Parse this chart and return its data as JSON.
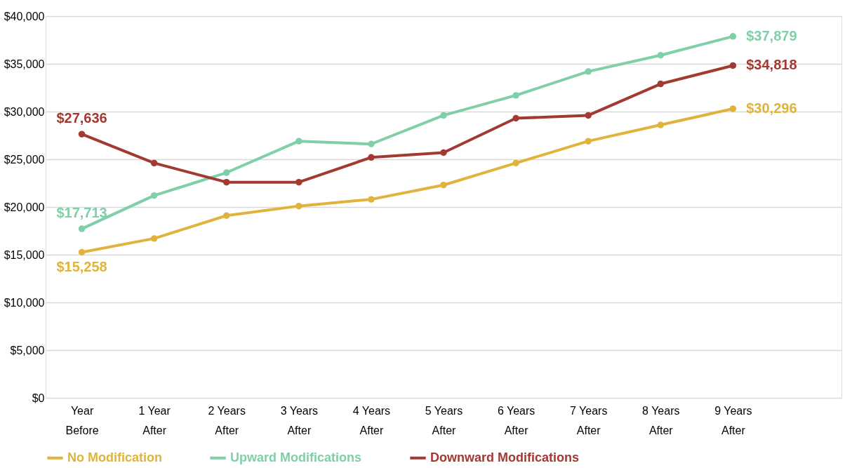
{
  "chart_data": {
    "type": "line",
    "categories": [
      "Year Before",
      "1 Year After",
      "2 Years After",
      "3 Years After",
      "4 Years After",
      "5 Years After",
      "6 Years After",
      "7 Years After",
      "8 Years After",
      "9 Years After"
    ],
    "series": [
      {
        "name": "No Modification",
        "color": "#e0b43c",
        "values": [
          15258,
          16700,
          19100,
          20100,
          20800,
          22300,
          24600,
          26900,
          28600,
          30296
        ],
        "value_labels": [
          "$15,258",
          null,
          null,
          null,
          null,
          null,
          null,
          null,
          null,
          "$30,296"
        ]
      },
      {
        "name": "Upward Modifications",
        "color": "#7fcfa8",
        "values": [
          17713,
          21200,
          23600,
          26900,
          26600,
          29600,
          31700,
          34200,
          35900,
          37879
        ],
        "value_labels": [
          "$17,713",
          null,
          null,
          null,
          null,
          null,
          null,
          null,
          null,
          "$37,879"
        ]
      },
      {
        "name": "Downward Modifications",
        "color": "#a33a32",
        "values": [
          27636,
          24600,
          22600,
          22600,
          25200,
          25700,
          29300,
          29600,
          32900,
          34818
        ],
        "value_labels": [
          "$27,636",
          null,
          null,
          null,
          null,
          null,
          null,
          null,
          null,
          "$34,818"
        ]
      }
    ],
    "ylim": [
      0,
      40000
    ],
    "yticks": [
      {
        "value": 0,
        "label": "$0"
      },
      {
        "value": 5000,
        "label": "$5,000"
      },
      {
        "value": 10000,
        "label": "$10,000"
      },
      {
        "value": 15000,
        "label": "$15,000"
      },
      {
        "value": 20000,
        "label": "$20,000"
      },
      {
        "value": 25000,
        "label": "$25,000"
      },
      {
        "value": 30000,
        "label": "$30,000"
      },
      {
        "value": 35000,
        "label": "$35,000"
      },
      {
        "value": 40000,
        "label": "$40,000"
      }
    ],
    "grid": "y",
    "legend": "bottom",
    "marker": "circle",
    "line_style": "solid"
  }
}
